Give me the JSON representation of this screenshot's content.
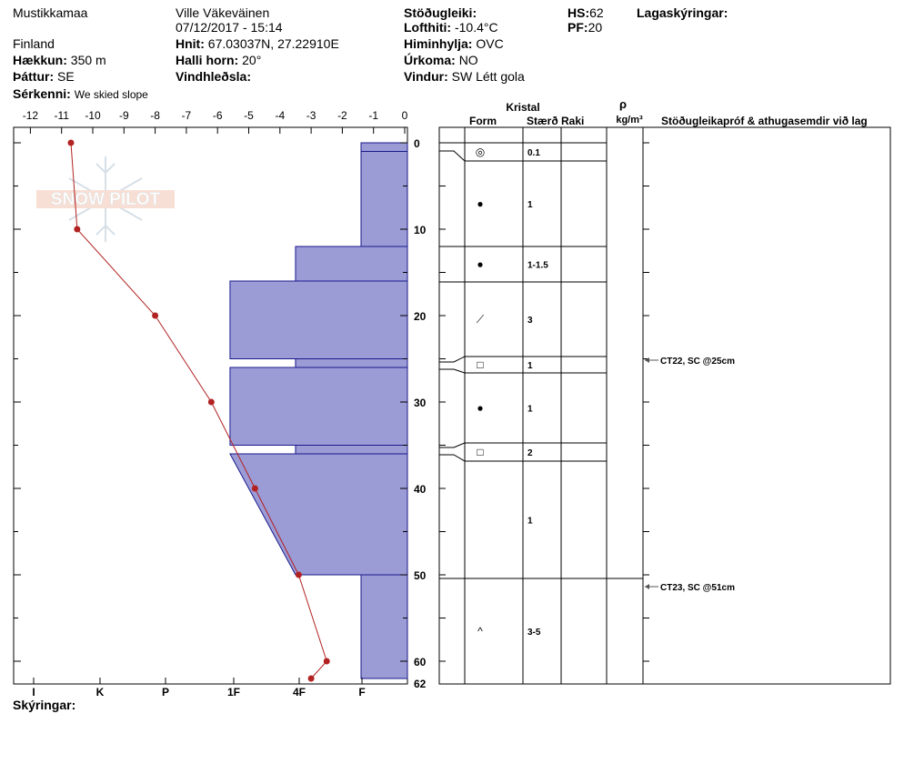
{
  "header": {
    "location": "Mustikkamaa",
    "country": "Finland",
    "elevation_label": "Hækkun:",
    "elevation_value": "350 m",
    "aspect_label": "Þáttur:",
    "aspect_value": "SE",
    "features_label": "Sérkenni:",
    "features_value": "We skied slope",
    "observer": "Ville Väkeväinen",
    "datetime": "07/12/2017 - 15:14",
    "coords_label": "Hnit:",
    "coords_value": "67.03037N, 27.22910E",
    "slope_label": "Halli horn:",
    "slope_value": "20°",
    "wind_loading_label": "Vindhleðsla:",
    "stability_label": "Stöðugleiki:",
    "air_temp_label": "Lofthiti:",
    "air_temp_value": "-10.4°C",
    "sky_label": "Himinhylja:",
    "sky_value": "OVC",
    "precip_label": "Úrkoma:",
    "precip_value": "NO",
    "wind_label": "Vindur:",
    "wind_value": "SW Létt gola",
    "hs_label": "HS:",
    "hs_value": "62",
    "pf_label": "PF:",
    "pf_value": "20",
    "layer_notes_label": "Lagaskýringar:",
    "footer_notes_label": "Skýringar:"
  },
  "watermark": {
    "text": "SNOW PILOT"
  },
  "colors": {
    "hardness_fill": "#9b9bd6",
    "hardness_stroke": "#1a1a8c",
    "temp_line": "#b22222"
  },
  "chart_data": {
    "type": "line",
    "temperature_axis": {
      "ticks": [
        "-12",
        "-11",
        "-10",
        "-9",
        "-8",
        "-7",
        "-6",
        "-5",
        "-4",
        "-3",
        "-2",
        "-1",
        "0"
      ],
      "xlim": [
        -12.3,
        0
      ]
    },
    "depth_axis": {
      "ticks": [
        "0",
        "10",
        "20",
        "30",
        "40",
        "50",
        "60"
      ],
      "bottom_label": "62",
      "ylim": [
        0,
        62
      ]
    },
    "hardness_axis": {
      "ticks": [
        "I",
        "K",
        "P",
        "1F",
        "4F",
        "F"
      ]
    },
    "temperature_profile": [
      {
        "depth": 0,
        "temp": -10.7
      },
      {
        "depth": 10,
        "temp": -10.5
      },
      {
        "depth": 20,
        "temp": -8.0
      },
      {
        "depth": 30,
        "temp": -6.2
      },
      {
        "depth": 40,
        "temp": -4.8
      },
      {
        "depth": 50,
        "temp": -3.4
      },
      {
        "depth": 60,
        "temp": -2.5
      },
      {
        "depth": 62,
        "temp": -3.0
      }
    ],
    "hardness_layers": [
      {
        "top": 0,
        "bottom": 1,
        "left_temp": -1.4
      },
      {
        "top": 1,
        "bottom": 12,
        "left_temp": -1.4
      },
      {
        "top": 12,
        "bottom": 16,
        "left_temp": -3.5
      },
      {
        "top": 16,
        "bottom": 25,
        "left_temp": -5.6
      },
      {
        "top": 25,
        "bottom": 26,
        "left_temp": -3.5
      },
      {
        "top": 26,
        "bottom": 35,
        "left_temp": -5.6
      },
      {
        "top": 35,
        "bottom": 36,
        "left_temp": -3.5
      },
      {
        "top": 36,
        "bottom": 50,
        "left_temp": -3.5,
        "left_temp_top": -5.6
      },
      {
        "top": 50,
        "bottom": 62,
        "left_temp": -1.4
      }
    ]
  },
  "layers_table": {
    "header_crystal": "Kristal",
    "header_form": "Form",
    "header_size": "Stærð",
    "header_moisture": "Raki",
    "header_density_symbol": "ρ",
    "header_density_unit": "kg/m³",
    "header_tests": "Stöðugleikapróf & athugasemdir við lag",
    "layers": [
      {
        "top": 0,
        "bottom": 2,
        "form": "◎",
        "size": "0.1"
      },
      {
        "top": 2,
        "bottom": 12,
        "form": "●",
        "size": "1"
      },
      {
        "top": 12,
        "bottom": 16,
        "form": "●",
        "size": "1-1.5"
      },
      {
        "top": 16,
        "bottom": 24.5,
        "form": "⟋",
        "size": "3"
      },
      {
        "top": 24.5,
        "bottom": 26.5,
        "form": "□",
        "size": "1"
      },
      {
        "top": 26.5,
        "bottom": 34.5,
        "form": "●",
        "size": "1"
      },
      {
        "top": 34.5,
        "bottom": 36.5,
        "form": "□",
        "size": "2"
      },
      {
        "top": 36.5,
        "bottom": 50,
        "form": "",
        "size": "1"
      },
      {
        "top": 50,
        "bottom": 62,
        "form": "^",
        "size": "3-5"
      }
    ],
    "tests": [
      {
        "depth": 25,
        "label": "CT22, SC @25cm"
      },
      {
        "depth": 51,
        "label": "CT23, SC @51cm"
      }
    ]
  }
}
